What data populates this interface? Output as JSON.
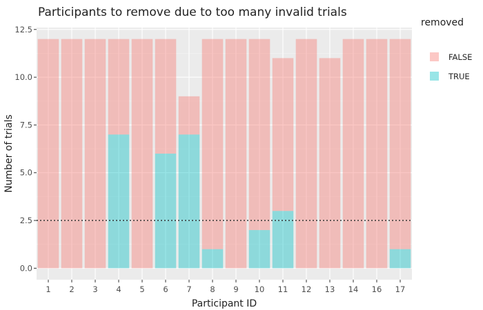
{
  "chart_data": {
    "type": "bar",
    "stacked": true,
    "title": "Participants to remove due to too many invalid trials",
    "xlabel": "Participant ID",
    "ylabel": "Number of trials",
    "categories": [
      "1",
      "2",
      "3",
      "4",
      "5",
      "6",
      "7",
      "8",
      "9",
      "10",
      "11",
      "12",
      "13",
      "14",
      "16",
      "17"
    ],
    "series": [
      {
        "name": "FALSE",
        "color": "#f8766d",
        "values": [
          12,
          12,
          12,
          5,
          12,
          6,
          2,
          11,
          12,
          10,
          8,
          12,
          11,
          12,
          12,
          11
        ]
      },
      {
        "name": "TRUE",
        "color": "#00bfc4",
        "values": [
          0,
          0,
          0,
          7,
          0,
          6,
          7,
          1,
          0,
          2,
          3,
          0,
          0,
          0,
          0,
          1
        ]
      }
    ],
    "yticks": [
      "0.0",
      "2.5",
      "5.0",
      "7.5",
      "10.0",
      "12.5"
    ],
    "ylim": [
      -0.6,
      12.6
    ],
    "threshold": 2.5,
    "legend": {
      "title": "removed",
      "position": "right",
      "entries": [
        "FALSE",
        "TRUE"
      ]
    },
    "grid": true
  }
}
